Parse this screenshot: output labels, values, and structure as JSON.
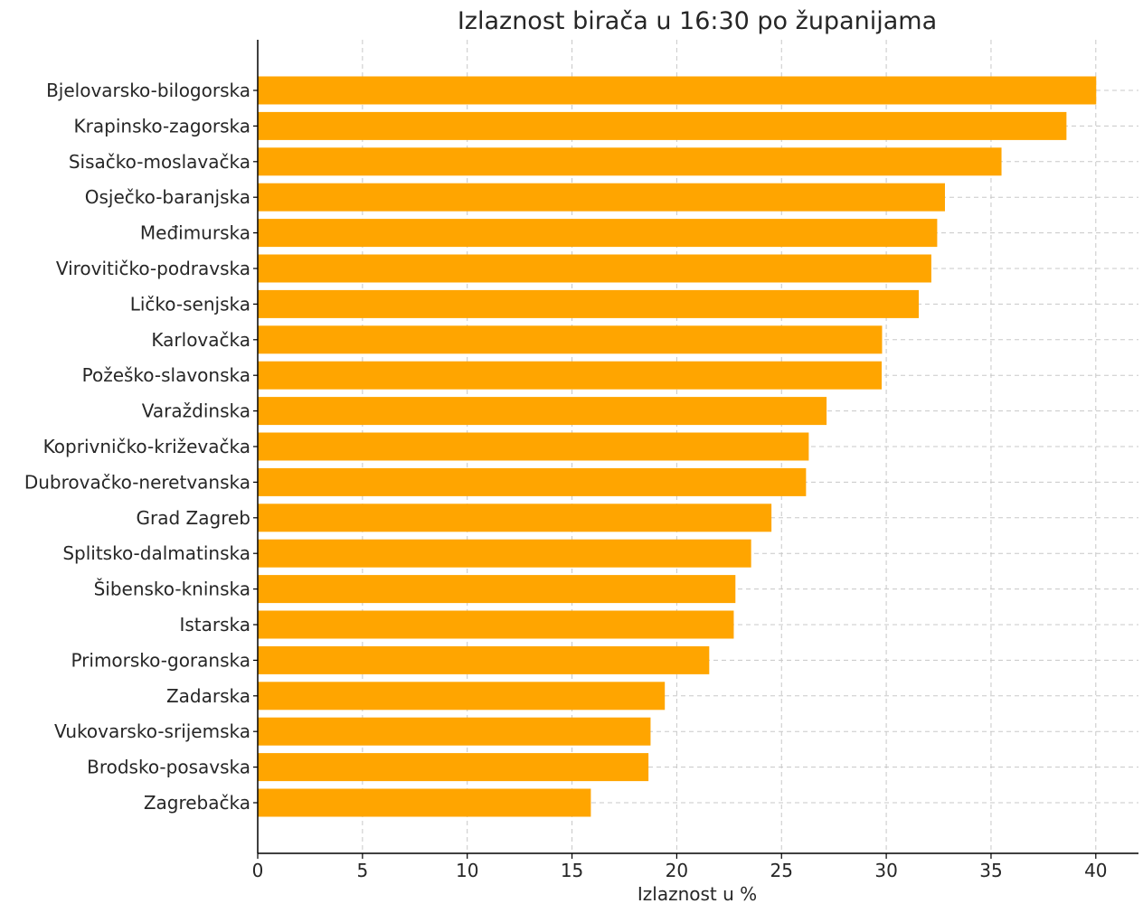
{
  "chart_data": {
    "type": "bar",
    "orientation": "horizontal",
    "title": "Izlaznost birača u 16:30 po županijama",
    "xlabel": "Izlaznost u %",
    "ylabel": "",
    "xlim": [
      0,
      42
    ],
    "xticks": [
      0,
      5,
      10,
      15,
      20,
      25,
      30,
      35,
      40
    ],
    "grid": true,
    "bar_color": "#FFA500",
    "categories": [
      "Bjelovarsko-bilogorska",
      "Krapinsko-zagorska",
      "Sisačko-moslavačka",
      "Osječko-baranjska",
      "Međimurska",
      "Virovitičko-podravska",
      "Ličko-senjska",
      "Karlovačka",
      "Požeško-slavonska",
      "Varaždinska",
      "Koprivničko-križevačka",
      "Dubrovačko-neretvanska",
      "Grad Zagreb",
      "Splitsko-dalmatinska",
      "Šibensko-kninska",
      "Istarska",
      "Primorsko-goranska",
      "Zadarska",
      "Vukovarsko-srijemska",
      "Brodsko-posavska",
      "Zagrebačka"
    ],
    "values": [
      40.02,
      38.6,
      35.5,
      32.8,
      32.43,
      32.15,
      31.55,
      29.8,
      29.78,
      27.15,
      26.3,
      26.17,
      24.52,
      23.55,
      22.8,
      22.72,
      21.55,
      19.43,
      18.75,
      18.65,
      15.9
    ]
  }
}
